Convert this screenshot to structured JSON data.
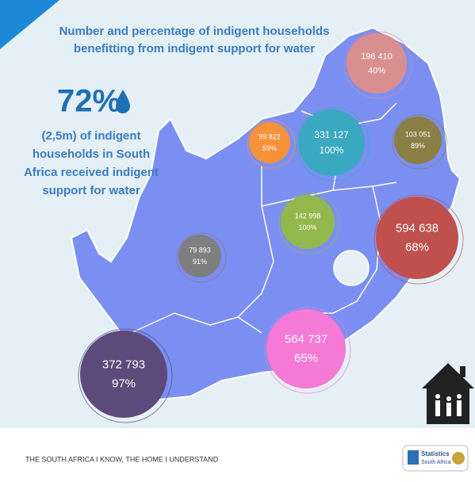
{
  "title": [
    "Number and percentage of indigent households",
    "benefitting from indigent support for water"
  ],
  "highlight": {
    "value": "72%",
    "text": [
      "(2,5m) of indigent",
      "households in South",
      "Africa received indigent",
      "support for water"
    ]
  },
  "bubbles": [
    {
      "count": "196 410",
      "percent": "40%",
      "color": "#d98f8f"
    },
    {
      "count": "99 822",
      "percent": "59%",
      "color": "#f7923a"
    },
    {
      "count": "331 127",
      "percent": "100%",
      "color": "#3aa8c1"
    },
    {
      "count": "103 051",
      "percent": "89%",
      "color": "#8a7f45"
    },
    {
      "count": "142 998",
      "percent": "100%",
      "color": "#93b84e"
    },
    {
      "count": "594 638",
      "percent": "68%",
      "color": "#c0504d"
    },
    {
      "count": "79 893",
      "percent": "91%",
      "color": "#7f7f7f"
    },
    {
      "count": "564 737",
      "percent": "65%",
      "color": "#f47ad6"
    },
    {
      "count": "372 793",
      "percent": "97%",
      "color": "#5e4a7a"
    }
  ],
  "footer": "THE SOUTH AFRICA I KNOW, THE HOME I UNDERSTAND",
  "logo": [
    "Statistics",
    "South Africa"
  ]
}
